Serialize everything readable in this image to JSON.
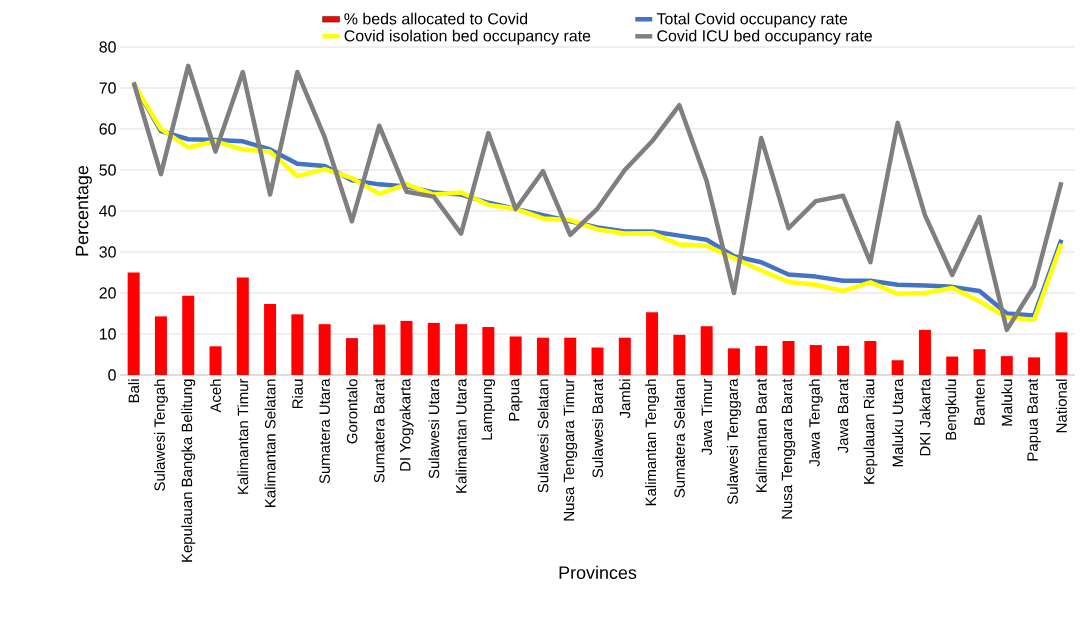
{
  "chart_data": {
    "type": "line",
    "xlabel": "Provinces",
    "ylabel": "Percentage",
    "categories": [
      "Bali",
      "Sulawesi Tengah",
      "Kepulauan Bangka Belitung",
      "Aceh",
      "Kalimantan Timur",
      "Kalimantan Selatan",
      "Riau",
      "Sumatera Utara",
      "Gorontalo",
      "Sumatera Barat",
      "DI Yogyakarta",
      "Sulawesi Utara",
      "Kalimantan Utara",
      "Lampung",
      "Papua",
      "Sulawesi Selatan",
      "Nusa Tenggara Timur",
      "Sulawesi Barat",
      "Jambi",
      "Kalimantan Tengah",
      "Sumatera Selatan",
      "Jawa Timur",
      "Sulawesi Tenggara",
      "Kalimantan Barat",
      "Nusa Tenggara Barat",
      "Jawa Tengah",
      "Jawa Barat",
      "Kepulauan Riau",
      "Maluku Utara",
      "DKI Jakarta",
      "Bengkulu",
      "Banten",
      "Maluku",
      "Papua Barat",
      "National"
    ],
    "series": [
      {
        "name": "%  beds allocated to Covid",
        "type": "bar",
        "color": "#ff0000",
        "values": [
          25,
          14.3,
          19.3,
          7,
          23.8,
          17.3,
          14.8,
          12.4,
          9,
          12.3,
          13.2,
          12.7,
          12.4,
          11.7,
          9.4,
          9.1,
          9.1,
          6.7,
          9.1,
          15.3,
          9.8,
          11.9,
          6.5,
          7.1,
          8.3,
          7.3,
          7.1,
          8.3,
          3.6,
          11,
          4.5,
          6.3,
          4.6,
          4.3,
          10.4
        ]
      },
      {
        "name": "Total Covid occupancy rate",
        "color": "#4472c4",
        "values": [
          71,
          59.5,
          57.5,
          57.3,
          57,
          55,
          51.5,
          51,
          47.5,
          46.5,
          46,
          44.5,
          44,
          42,
          40.5,
          39,
          37.5,
          36,
          35,
          35,
          34,
          33,
          29,
          27.5,
          24.5,
          24,
          23,
          23,
          22,
          21.8,
          21.5,
          20.5,
          15,
          14.5,
          33
        ]
      },
      {
        "name": "Covid isolation bed occupancy rate",
        "color": "#ffff00",
        "values": [
          71,
          60,
          55.5,
          57,
          55,
          54.5,
          48.5,
          50.2,
          48,
          44.2,
          46.5,
          44,
          44.5,
          41.5,
          40.5,
          38.2,
          37.8,
          35.5,
          34.5,
          34.6,
          31.8,
          31.5,
          28.5,
          25.5,
          22.7,
          22,
          20.5,
          22.6,
          19.8,
          20,
          21.2,
          18,
          14,
          13.5,
          32
        ]
      },
      {
        "name": "Covid ICU bed occupancy rate",
        "color": "#7f7f7f",
        "values": [
          71.4,
          49,
          75.4,
          54.5,
          73.9,
          44,
          73.9,
          58,
          37.5,
          60.8,
          44.7,
          43.5,
          34.5,
          59,
          40.5,
          49.7,
          34.2,
          40.6,
          50,
          57,
          65.8,
          47.3,
          20,
          57.8,
          35.8,
          42.4,
          43.7,
          27.5,
          61.5,
          39,
          24.4,
          38.5,
          11,
          21.7,
          47
        ]
      }
    ],
    "ylim": [
      0,
      80
    ],
    "yticks": [
      0,
      10,
      20,
      30,
      40,
      50,
      60,
      70,
      80
    ],
    "grid": "y",
    "legend": "top",
    "line_style": "solid",
    "marker": "none"
  }
}
